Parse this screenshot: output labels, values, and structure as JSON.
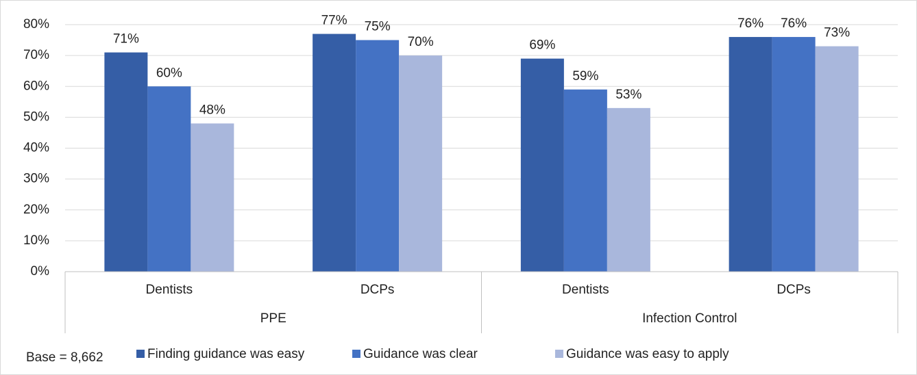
{
  "chart_data": {
    "type": "bar",
    "categories": [
      "Dentists",
      "DCPs",
      "Dentists",
      "DCPs"
    ],
    "group_labels": [
      "PPE",
      "Infection Control"
    ],
    "series": [
      {
        "name": "Finding guidance was easy",
        "color": "#355ea6",
        "values": [
          71,
          77,
          69,
          76
        ],
        "value_labels": [
          "71%",
          "77%",
          "69%",
          "76%"
        ]
      },
      {
        "name": "Guidance was clear",
        "color": "#4472c4",
        "values": [
          60,
          75,
          59,
          76
        ],
        "value_labels": [
          "60%",
          "75%",
          "59%",
          "76%"
        ]
      },
      {
        "name": "Guidance was easy to apply",
        "color": "#a9b7dc",
        "values": [
          48,
          70,
          53,
          73
        ],
        "value_labels": [
          "48%",
          "70%",
          "53%",
          "73%"
        ]
      }
    ],
    "ylim": [
      0,
      80
    ],
    "yticks": [
      {
        "value": 0,
        "label": "0%"
      },
      {
        "value": 10,
        "label": "10%"
      },
      {
        "value": 20,
        "label": "20%"
      },
      {
        "value": 30,
        "label": "30%"
      },
      {
        "value": 40,
        "label": "40%"
      },
      {
        "value": 50,
        "label": "50%"
      },
      {
        "value": 60,
        "label": "60%"
      },
      {
        "value": 70,
        "label": "70%"
      },
      {
        "value": 80,
        "label": "80%"
      }
    ],
    "grid": true,
    "legend": "bottom",
    "note": "Base = 8,662"
  }
}
